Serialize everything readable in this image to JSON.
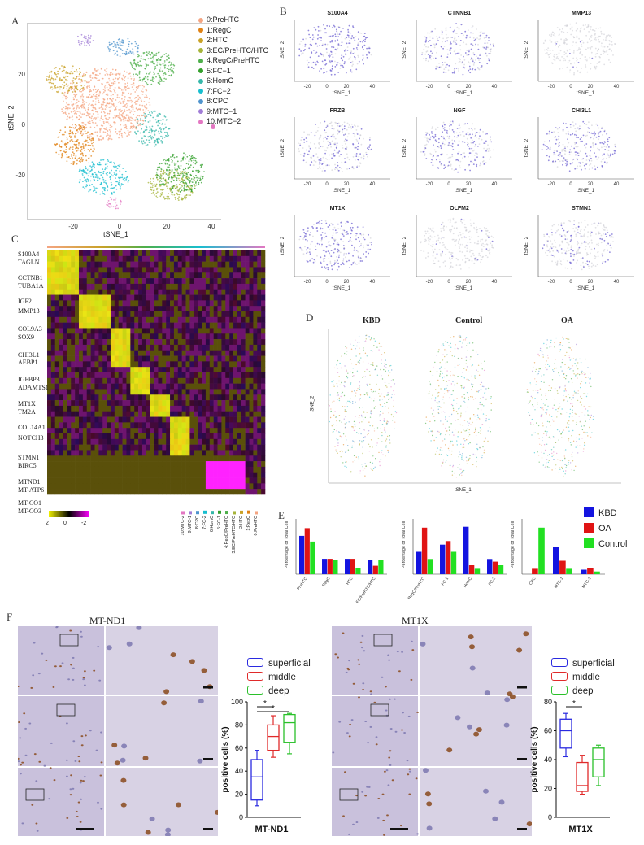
{
  "panels": {
    "A": "A",
    "B": "B",
    "C": "C",
    "D": "D",
    "E": "E",
    "F": "F"
  },
  "panelA": {
    "xlabel": "tSNE_1",
    "ylabel": "tSNE_2",
    "xticks": [
      "-20",
      "0",
      "20",
      "40"
    ],
    "yticks": [
      "20",
      "0",
      "-20"
    ],
    "clusters": [
      {
        "label": "0:PreHTC",
        "color": "#f4a582"
      },
      {
        "label": "1:RegC",
        "color": "#e08214"
      },
      {
        "label": "2:HTC",
        "color": "#c9a227"
      },
      {
        "label": "3:EC/PreHTC/HTC",
        "color": "#a6b43a"
      },
      {
        "label": "4:RegC/PreHTC",
        "color": "#4daf4a"
      },
      {
        "label": "5:FC−1",
        "color": "#33a02c"
      },
      {
        "label": "6:HomC",
        "color": "#35b7a9"
      },
      {
        "label": "7:FC−2",
        "color": "#17becf"
      },
      {
        "label": "8:CPC",
        "color": "#4f94cd"
      },
      {
        "label": "9:MTC−1",
        "color": "#a07cd6"
      },
      {
        "label": "10:MTC−2",
        "color": "#e377c2"
      }
    ]
  },
  "panelB": {
    "xlabel": "tSNE_1",
    "ylabel": "tSNE_2",
    "xticks": [
      "-20",
      "0",
      "20",
      "40"
    ],
    "genes": [
      "S100A4",
      "CTNNB1",
      "MMP13",
      "FRZB",
      "NGF",
      "CHI3L1",
      "MT1X",
      "OLFM2",
      "STMN1"
    ]
  },
  "panelC": {
    "genes": [
      "S100A4",
      "TAGLN",
      "CCTNB1",
      "TUBA1A",
      "IGF2",
      "MMP13",
      "COL9A3",
      "SOX9",
      "CHI3L1",
      "AEBP1",
      "IGFBP3",
      "ADAMTS1",
      "MT1X",
      "TM2A",
      "COL14A1",
      "NOTCH3",
      "STMN1",
      "BIRC5",
      "MTND1",
      "MT-ATP6",
      "MT-CO1",
      "MT-CO3"
    ],
    "scale_labels": [
      "2",
      "0",
      "-2"
    ],
    "cluster_labels": [
      "10:MTC-2",
      "9:MTC-1",
      "8:CPC",
      "7:FC-2",
      "6:HomC",
      "5:FC-1",
      "4:RegC/PreHTC",
      "3:EC/PreHTC/HTC",
      "2:HTC",
      "1:RegC",
      "0:PreHTC"
    ]
  },
  "panelD": {
    "titles": [
      "KBD",
      "Control",
      "OA"
    ],
    "xlabel": "tSNE_1",
    "ylabel": "tSNE_2"
  },
  "panelE": {
    "legend": [
      {
        "label": "KBD",
        "color": "#1414e0"
      },
      {
        "label": "OA",
        "color": "#e01414"
      },
      {
        "label": "Control",
        "color": "#22e022"
      }
    ],
    "ylabel": "Percentage of Total Cell"
  },
  "chart_data": [
    {
      "type": "bar",
      "title": "",
      "ylabel": "Percentage of Total Cell",
      "categories": [
        "PreHTC",
        "RegC",
        "HTC",
        "EC/PreHTC/HTC"
      ],
      "series": [
        {
          "name": "KBD",
          "values": [
            10,
            4,
            4,
            3.8
          ]
        },
        {
          "name": "OA",
          "values": [
            12,
            4,
            4,
            2.2
          ]
        },
        {
          "name": "Control",
          "values": [
            8.5,
            3.7,
            1.5,
            3.6
          ]
        }
      ],
      "ylim": [
        0,
        14
      ]
    },
    {
      "type": "bar",
      "title": "",
      "ylabel": "Percentage of Total Cell",
      "categories": [
        "RegC/PreHTC",
        "FC-1",
        "HomC",
        "FC-2"
      ],
      "series": [
        {
          "name": "KBD",
          "values": [
            2.5,
            3.3,
            5.3,
            1.7
          ]
        },
        {
          "name": "OA",
          "values": [
            5.2,
            3.7,
            1.0,
            1.4
          ]
        },
        {
          "name": "Control",
          "values": [
            1.7,
            2.5,
            0.6,
            1.0
          ]
        }
      ],
      "ylim": [
        0,
        6
      ]
    },
    {
      "type": "bar",
      "title": "",
      "ylabel": "Percentage of Total Cell",
      "categories": [
        "CPC",
        "MTC-1",
        "MTC-2"
      ],
      "series": [
        {
          "name": "KBD",
          "values": [
            0.0,
            1.5,
            0.25
          ]
        },
        {
          "name": "OA",
          "values": [
            0.3,
            0.75,
            0.35
          ]
        },
        {
          "name": "Control",
          "values": [
            2.6,
            0.3,
            0.15
          ]
        }
      ],
      "ylim": [
        0,
        3
      ]
    },
    {
      "type": "box",
      "title": "MT-ND1",
      "ylabel": "positive cells (%)",
      "yticks": [
        "0",
        "20",
        "40",
        "60",
        "80",
        "100"
      ],
      "ylim": [
        0,
        100
      ],
      "series": [
        {
          "name": "superficial",
          "min": 10,
          "q1": 15,
          "median": 35,
          "q3": 50,
          "max": 58
        },
        {
          "name": "middle",
          "min": 52,
          "q1": 58,
          "median": 70,
          "q3": 80,
          "max": 88
        },
        {
          "name": "deep",
          "min": 55,
          "q1": 65,
          "median": 82,
          "q3": 89,
          "max": 90
        }
      ],
      "significance": [
        "*",
        "*"
      ]
    },
    {
      "type": "box",
      "title": "MT1X",
      "ylabel": "positive cells (%)",
      "yticks": [
        "0",
        "20",
        "40",
        "60",
        "80"
      ],
      "ylim": [
        0,
        80
      ],
      "series": [
        {
          "name": "superficial",
          "min": 42,
          "q1": 48,
          "median": 60,
          "q3": 68,
          "max": 72
        },
        {
          "name": "middle",
          "min": 16,
          "q1": 18,
          "median": 22,
          "q3": 38,
          "max": 43
        },
        {
          "name": "deep",
          "min": 22,
          "q1": 28,
          "median": 40,
          "q3": 48,
          "max": 50
        }
      ],
      "significance": [
        "*"
      ]
    }
  ],
  "panelF": {
    "left_title": "MT-ND1",
    "right_title": "MT1X",
    "legend": [
      {
        "label": "superficial",
        "color": "#2a2ae0"
      },
      {
        "label": "middle",
        "color": "#e02a2a"
      },
      {
        "label": "deep",
        "color": "#2ac02a"
      }
    ]
  }
}
